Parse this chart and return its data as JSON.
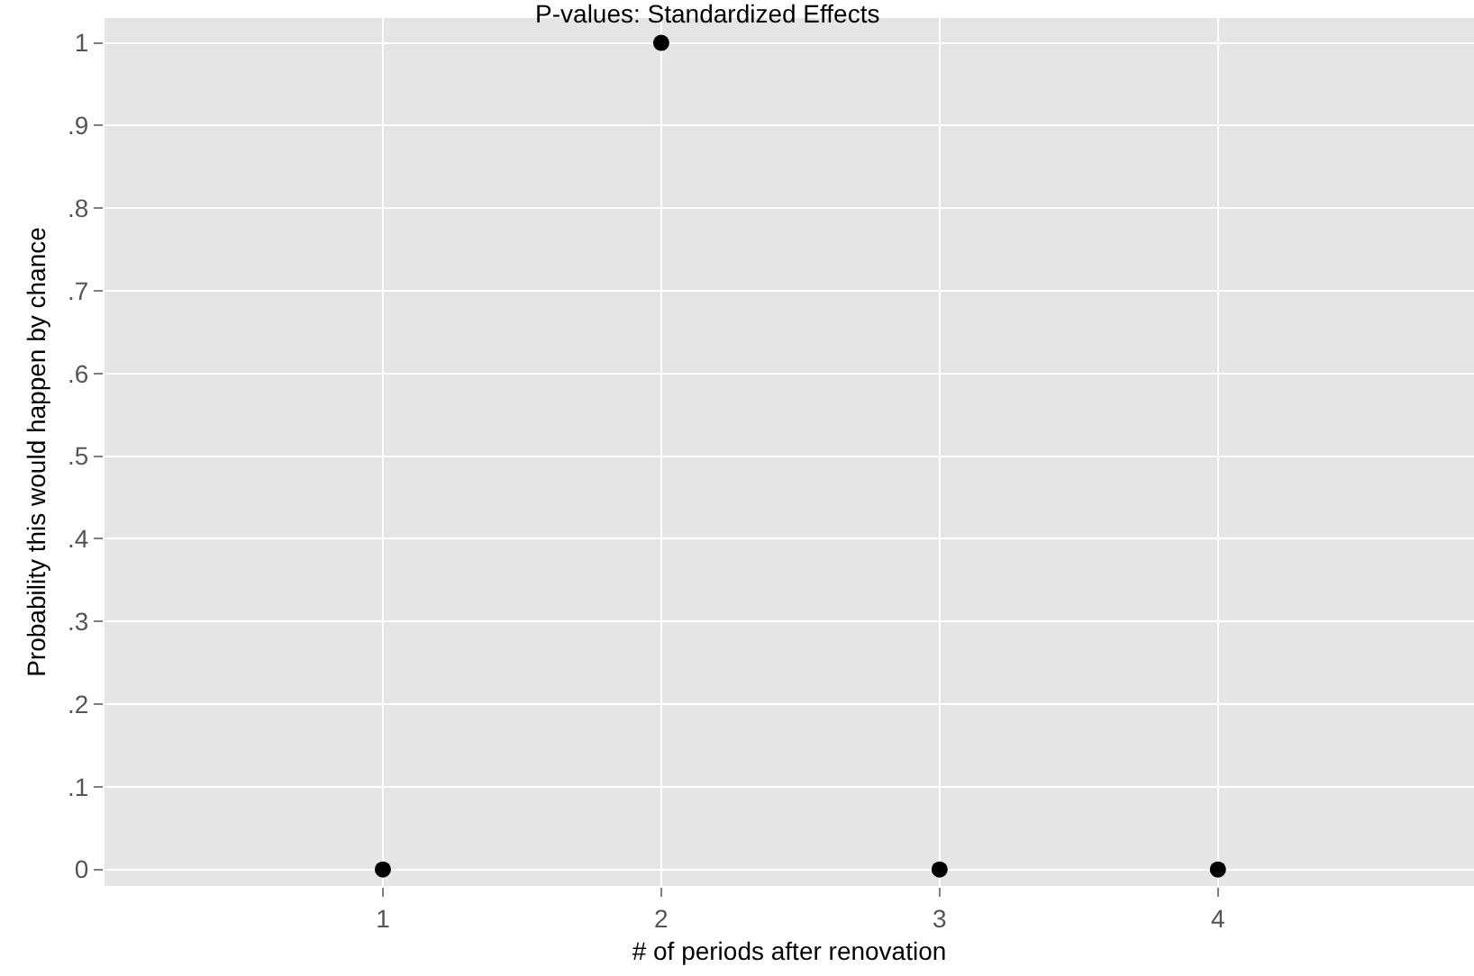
{
  "chart_data": {
    "type": "scatter",
    "title": "P-values: Standardized Effects",
    "xlabel": "# of periods after renovation",
    "ylabel": "Probability this would happen by chance",
    "x": [
      1,
      2,
      3,
      4
    ],
    "series": [
      {
        "color": "#000000",
        "values": [
          0,
          1,
          0,
          0
        ]
      }
    ],
    "marker": "circle",
    "grid": true,
    "xlim": [
      0,
      4.92
    ],
    "xticks": [
      1,
      2,
      3,
      4
    ],
    "ylim": [
      -0.02,
      1.03
    ],
    "yticks": [
      0,
      {
        "value": 0.1,
        "label": ".1"
      },
      {
        "value": 0.2,
        "label": ".2"
      },
      {
        "value": 0.3,
        "label": ".3"
      },
      {
        "value": 0.4,
        "label": ".4"
      },
      {
        "value": 0.5,
        "label": ".5"
      },
      {
        "value": 0.6,
        "label": ".6"
      },
      {
        "value": 0.7,
        "label": ".7"
      },
      {
        "value": 0.8,
        "label": ".8"
      },
      {
        "value": 0.9,
        "label": ".9"
      },
      1
    ]
  }
}
